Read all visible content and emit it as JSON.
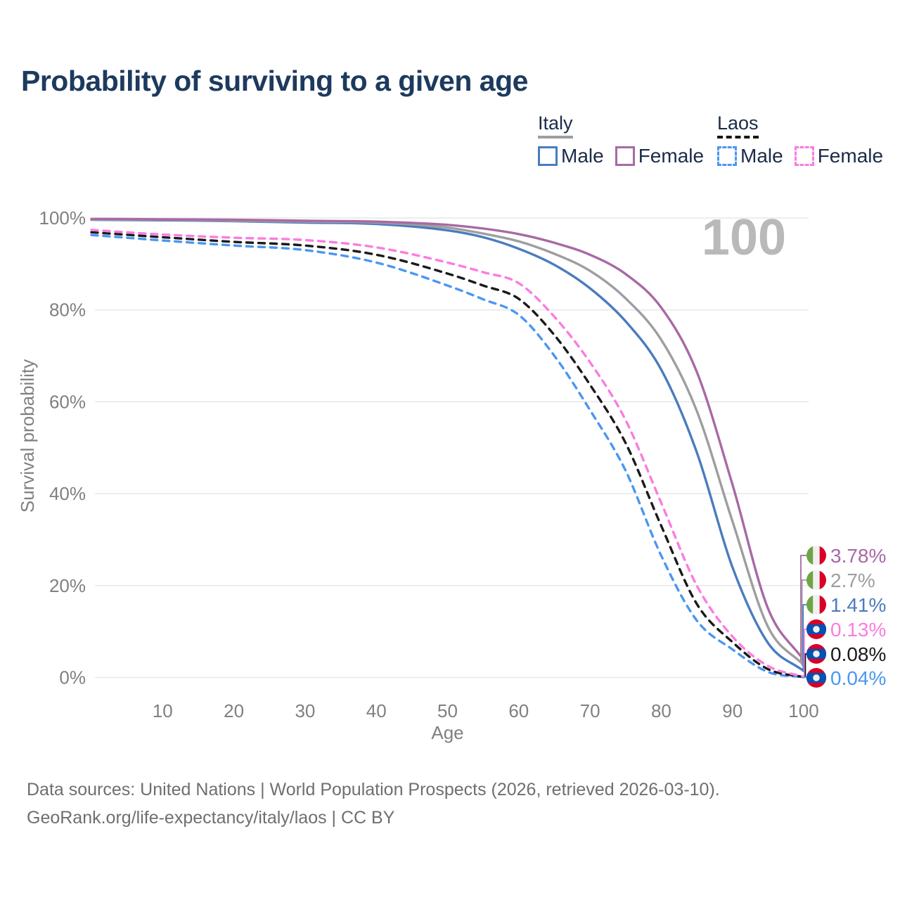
{
  "title": "Probability of surviving to a given age",
  "watermark_hover_age": "100",
  "legend": {
    "groups": [
      {
        "label": "Italy",
        "line_style": "solid",
        "items": [
          {
            "label": "Male",
            "color": "#4a7cbe"
          },
          {
            "label": "Female",
            "color": "#a869a4"
          }
        ]
      },
      {
        "label": "Laos",
        "line_style": "dashed",
        "items": [
          {
            "label": "Male",
            "color": "#4a97f2"
          },
          {
            "label": "Female",
            "color": "#fb7ce0"
          }
        ]
      }
    ]
  },
  "chart_data": {
    "type": "line",
    "title": "Probability of surviving to a given age",
    "xlabel": "Age",
    "ylabel": "Survival probability",
    "xlim": [
      0,
      100
    ],
    "ylim": [
      0,
      100
    ],
    "grid": "horizontal",
    "x_ticks": [
      10,
      20,
      30,
      40,
      50,
      60,
      70,
      80,
      90,
      100
    ],
    "y_ticks": [
      0,
      20,
      40,
      60,
      80,
      100
    ],
    "y_tick_labels": [
      "0%",
      "20%",
      "40%",
      "60%",
      "80%",
      "100%"
    ],
    "x": [
      0,
      10,
      20,
      30,
      40,
      50,
      55,
      60,
      65,
      70,
      75,
      80,
      85,
      90,
      95,
      100
    ],
    "series": [
      {
        "name": "Italy Female",
        "country": "Italy",
        "sex": "Female",
        "style": "solid",
        "color": "#a869a4",
        "flag": "italy",
        "end_label": "3.78%",
        "end_label_color": "#a869a4",
        "values": [
          99.8,
          99.7,
          99.6,
          99.4,
          99.2,
          98.5,
          97.7,
          96.5,
          94.6,
          92.0,
          87.8,
          80.5,
          66.5,
          42.0,
          15.0,
          3.78
        ]
      },
      {
        "name": "Italy Both sexes",
        "country": "Italy",
        "sex": "Both sexes",
        "style": "solid",
        "color": "#9e9ea0",
        "flag": "italy",
        "end_label": "2.7%",
        "end_label_color": "#9e9e9e",
        "values": [
          99.7,
          99.6,
          99.4,
          99.2,
          99.0,
          97.9,
          96.6,
          94.9,
          92.2,
          88.5,
          82.5,
          73.5,
          58.0,
          34.0,
          11.0,
          2.7
        ]
      },
      {
        "name": "Italy Male",
        "country": "Italy",
        "sex": "Male",
        "style": "solid",
        "color": "#4a7cbe",
        "flag": "italy",
        "end_label": "1.41%",
        "end_label_color": "#4a7cbe",
        "values": [
          99.6,
          99.5,
          99.3,
          99.0,
          98.7,
          97.3,
          95.8,
          93.3,
          89.8,
          84.7,
          77.5,
          67.0,
          49.0,
          24.0,
          7.5,
          1.41
        ]
      },
      {
        "name": "Laos Female",
        "country": "Laos",
        "sex": "Female",
        "style": "dashed",
        "color": "#fb7ce0",
        "flag": "laos",
        "end_label": "0.13%",
        "end_label_color": "#fb7ce0",
        "values": [
          97.4,
          96.4,
          95.7,
          95.2,
          93.6,
          90.3,
          88.2,
          85.8,
          78.5,
          68.6,
          56.0,
          38.0,
          20.0,
          8.9,
          2.5,
          0.13
        ]
      },
      {
        "name": "Laos Both sexes",
        "country": "Laos",
        "sex": "Both sexes",
        "style": "dashed",
        "color": "#1a1a1a",
        "flag": "laos",
        "end_label": "0.08%",
        "end_label_color": "#1a1a1a",
        "values": [
          96.9,
          95.8,
          94.8,
          94.0,
          92.0,
          87.9,
          85.3,
          82.4,
          74.5,
          63.7,
          51.0,
          33.0,
          16.0,
          7.7,
          1.8,
          0.08
        ]
      },
      {
        "name": "Laos Male",
        "country": "Laos",
        "sex": "Male",
        "style": "dashed",
        "color": "#4a97f2",
        "flag": "laos",
        "end_label": "0.04%",
        "end_label_color": "#4a97f2",
        "values": [
          96.3,
          95.1,
          94.0,
          93.0,
          90.3,
          85.3,
          82.3,
          78.9,
          70.0,
          58.2,
          45.0,
          26.5,
          12.4,
          6.1,
          1.2,
          0.04
        ]
      }
    ]
  },
  "footer": {
    "line1": "Data sources: United Nations | World Population Prospects (2026, retrieved 2026-03-10).",
    "line2": "GeoRank.org/life-expectancy/italy/laos | CC BY"
  }
}
